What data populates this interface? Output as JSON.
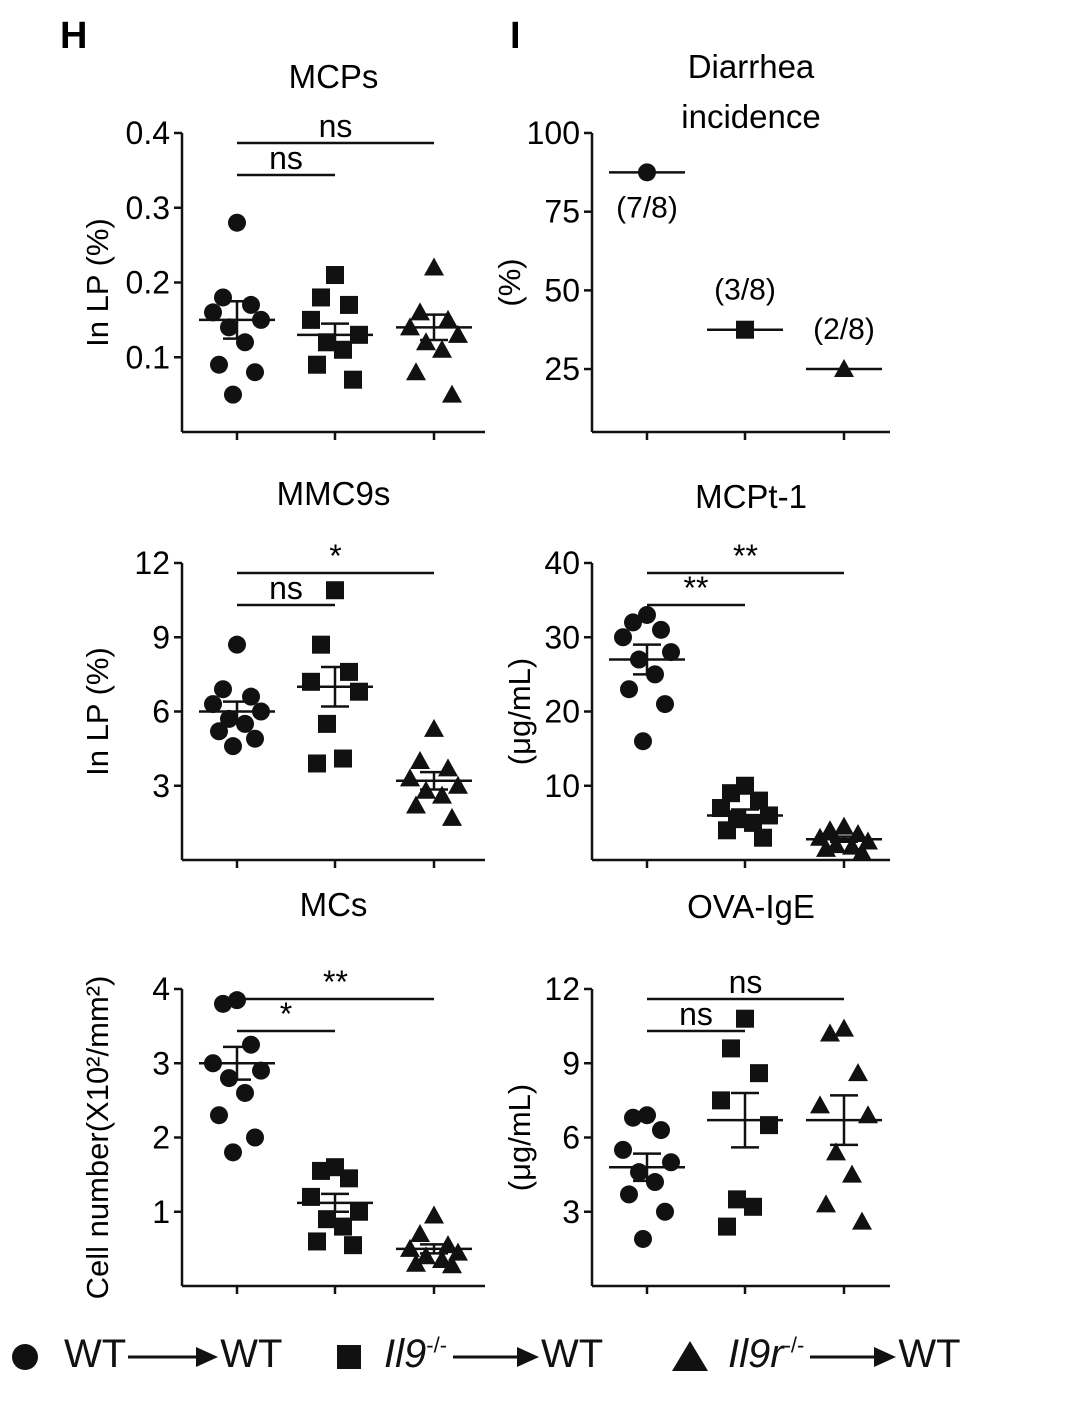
{
  "panel_labels": [
    "H",
    "I"
  ],
  "legend": {
    "items": [
      {
        "marker": "circle",
        "donor_prefix": "WT",
        "donor_sup": "",
        "recipient": "WT"
      },
      {
        "marker": "square",
        "donor_prefix": "Il9",
        "donor_sup": "-/-",
        "recipient": "WT"
      },
      {
        "marker": "triangle",
        "donor_prefix": "Il9r",
        "donor_sup": "-/-",
        "recipient": "WT"
      }
    ]
  },
  "chart_data": [
    {
      "id": "mcps",
      "type": "scatter",
      "panel": "H",
      "title": [
        "MCPs"
      ],
      "ylabel": "In LP (%)",
      "ylim": [
        0.0,
        0.4
      ],
      "yticks": [
        0.1,
        0.2,
        0.3,
        0.4
      ],
      "ytick_labels": [
        "0.1",
        "0.2",
        "0.3",
        "0.4"
      ],
      "groups": [
        "WT→WT",
        "Il9-/-→WT",
        "Il9r-/-→WT"
      ],
      "series": [
        {
          "marker": "circle",
          "values": [
            0.28,
            0.18,
            0.17,
            0.16,
            0.15,
            0.14,
            0.12,
            0.09,
            0.08,
            0.05
          ],
          "mean": 0.15,
          "sem": 0.025
        },
        {
          "marker": "square",
          "values": [
            0.21,
            0.18,
            0.17,
            0.15,
            0.13,
            0.12,
            0.11,
            0.09,
            0.07
          ],
          "mean": 0.13,
          "sem": 0.015
        },
        {
          "marker": "triangle",
          "values": [
            0.22,
            0.16,
            0.15,
            0.14,
            0.13,
            0.12,
            0.11,
            0.08,
            0.05
          ],
          "mean": 0.14,
          "sem": 0.017
        }
      ],
      "comparisons": [
        {
          "from": 0,
          "to": 1,
          "label": "ns"
        },
        {
          "from": 0,
          "to": 2,
          "label": "ns"
        }
      ]
    },
    {
      "id": "diarrhea",
      "type": "scatter",
      "panel": "I",
      "title": [
        "Diarrhea",
        "incidence"
      ],
      "ylabel": "(%)",
      "ylim": [
        5,
        100
      ],
      "yticks": [
        25,
        50,
        75,
        100
      ],
      "ytick_labels": [
        "25",
        "50",
        "75",
        "100"
      ],
      "groups": [
        "WT→WT",
        "Il9-/-→WT",
        "Il9r-/-→WT"
      ],
      "series": [
        {
          "marker": "circle",
          "values": [
            87.5
          ],
          "mean": 87.5,
          "annotation": "(7/8)"
        },
        {
          "marker": "square",
          "values": [
            37.5
          ],
          "mean": 37.5,
          "annotation": "(3/8)"
        },
        {
          "marker": "triangle",
          "values": [
            25
          ],
          "mean": 25,
          "annotation": "(2/8)"
        }
      ],
      "comparisons": []
    },
    {
      "id": "mmc9s",
      "type": "scatter",
      "panel": "H",
      "title": [
        "MMC9s"
      ],
      "ylabel": "In LP (%)",
      "ylim": [
        0,
        12
      ],
      "yticks": [
        3,
        6,
        9,
        12
      ],
      "ytick_labels": [
        "3",
        "6",
        "9",
        "12"
      ],
      "groups": [
        "WT→WT",
        "Il9-/-→WT",
        "Il9r-/-→WT"
      ],
      "series": [
        {
          "marker": "circle",
          "values": [
            8.7,
            6.9,
            6.6,
            6.3,
            6.0,
            5.7,
            5.5,
            5.2,
            4.9,
            4.6
          ],
          "mean": 6.0,
          "sem": 0.4
        },
        {
          "marker": "square",
          "values": [
            10.9,
            8.7,
            7.6,
            7.2,
            6.8,
            5.5,
            4.1,
            3.9
          ],
          "mean": 7.0,
          "sem": 0.8
        },
        {
          "marker": "triangle",
          "values": [
            5.3,
            4.0,
            3.7,
            3.3,
            3.0,
            2.8,
            2.6,
            2.2,
            1.7
          ],
          "mean": 3.2,
          "sem": 0.35
        }
      ],
      "comparisons": [
        {
          "from": 0,
          "to": 1,
          "label": "ns"
        },
        {
          "from": 0,
          "to": 2,
          "label": "*"
        }
      ]
    },
    {
      "id": "mcpt1",
      "type": "scatter",
      "panel": "I",
      "title": [
        "MCPt-1"
      ],
      "ylabel": "(μg/mL)",
      "ylim": [
        0,
        40
      ],
      "yticks": [
        10,
        20,
        30,
        40
      ],
      "ytick_labels": [
        "10",
        "20",
        "30",
        "40"
      ],
      "groups": [
        "WT→WT",
        "Il9-/-→WT",
        "Il9r-/-→WT"
      ],
      "series": [
        {
          "marker": "circle",
          "values": [
            33,
            32,
            31,
            30,
            28,
            27,
            25,
            23,
            21,
            16
          ],
          "mean": 27,
          "sem": 2.0
        },
        {
          "marker": "square",
          "values": [
            10,
            9,
            8,
            7,
            6,
            5.5,
            5,
            4,
            3
          ],
          "mean": 6,
          "sem": 0.8
        },
        {
          "marker": "triangle",
          "values": [
            4.5,
            4,
            3.5,
            3,
            2.5,
            2,
            1.8,
            1.5,
            1
          ],
          "mean": 2.8,
          "sem": 0.35
        }
      ],
      "comparisons": [
        {
          "from": 0,
          "to": 1,
          "label": "**"
        },
        {
          "from": 0,
          "to": 2,
          "label": "**"
        }
      ]
    },
    {
      "id": "mcs",
      "type": "scatter",
      "panel": "H",
      "title": [
        "MCs"
      ],
      "ylabel": "Cell number(X10²/mm²)",
      "ylim": [
        0,
        4
      ],
      "yticks": [
        1,
        2,
        3,
        4
      ],
      "ytick_labels": [
        "1",
        "2",
        "3",
        "4"
      ],
      "groups": [
        "WT→WT",
        "Il9-/-→WT",
        "Il9r-/-→WT"
      ],
      "series": [
        {
          "marker": "circle",
          "values": [
            3.85,
            3.8,
            3.25,
            3.0,
            2.9,
            2.8,
            2.6,
            2.3,
            2.0,
            1.8
          ],
          "mean": 3.0,
          "sem": 0.22
        },
        {
          "marker": "square",
          "values": [
            1.6,
            1.55,
            1.45,
            1.2,
            1.0,
            0.9,
            0.8,
            0.6,
            0.55
          ],
          "mean": 1.12,
          "sem": 0.12
        },
        {
          "marker": "triangle",
          "values": [
            0.95,
            0.7,
            0.55,
            0.5,
            0.45,
            0.4,
            0.35,
            0.3,
            0.28
          ],
          "mean": 0.5,
          "sem": 0.06
        }
      ],
      "comparisons": [
        {
          "from": 0,
          "to": 1,
          "label": "*"
        },
        {
          "from": 0,
          "to": 2,
          "label": "**"
        }
      ]
    },
    {
      "id": "ovaige",
      "type": "scatter",
      "panel": "I",
      "title": [
        "OVA-IgE"
      ],
      "ylabel": "(μg/mL)",
      "ylim": [
        0,
        12
      ],
      "yticks": [
        3,
        6,
        9,
        12
      ],
      "ytick_labels": [
        "3",
        "6",
        "9",
        "12"
      ],
      "groups": [
        "WT→WT",
        "Il9-/-→WT",
        "Il9r-/-→WT"
      ],
      "series": [
        {
          "marker": "circle",
          "values": [
            6.9,
            6.8,
            6.3,
            5.5,
            5.0,
            4.6,
            4.2,
            3.7,
            3.0,
            1.9
          ],
          "mean": 4.8,
          "sem": 0.55
        },
        {
          "marker": "square",
          "values": [
            10.8,
            9.6,
            8.6,
            7.5,
            6.5,
            3.5,
            3.2,
            2.4
          ],
          "mean": 6.7,
          "sem": 1.1
        },
        {
          "marker": "triangle",
          "values": [
            10.4,
            10.2,
            8.6,
            7.3,
            6.9,
            5.4,
            4.5,
            3.3,
            2.6
          ],
          "mean": 6.7,
          "sem": 1.0
        }
      ],
      "comparisons": [
        {
          "from": 0,
          "to": 1,
          "label": "ns"
        },
        {
          "from": 0,
          "to": 2,
          "label": "ns"
        }
      ]
    }
  ]
}
